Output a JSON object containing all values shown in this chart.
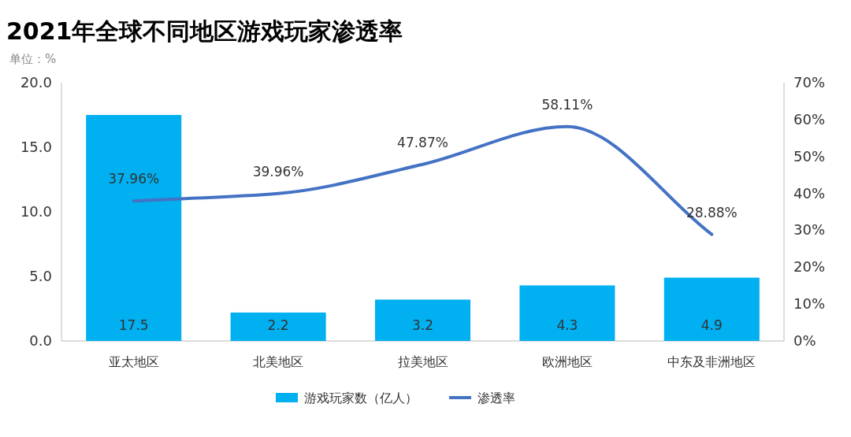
{
  "chart_data": {
    "type": "bar",
    "title": "2021年全球不同地区游戏玩家渗透率",
    "annotations": [
      "单位：%"
    ],
    "categories": [
      "亚太地区",
      "北美地区",
      "拉美地区",
      "欧洲地区",
      "中东及非洲地区"
    ],
    "series": [
      {
        "name": "游戏玩家数（亿人）",
        "color": "#00b0f0",
        "values": [
          17.5,
          2.2,
          3.2,
          4.3,
          4.9
        ],
        "value_labels": [
          "17.5",
          "2.2",
          "3.2",
          "4.3",
          "4.9"
        ]
      },
      {
        "name": "渗透率",
        "type": "line",
        "axis": "y2",
        "color": "#4472c4",
        "line_style": "solid",
        "values": [
          37.96,
          39.96,
          47.87,
          58.11,
          28.88
        ],
        "value_labels": [
          "37.96%",
          "39.96%",
          "47.87%",
          "58.11%",
          "28.88%"
        ]
      }
    ],
    "ylim": [
      0,
      20
    ],
    "yticks": [
      {
        "value": 0,
        "label": "0.0"
      },
      {
        "value": 5,
        "label": "5.0"
      },
      {
        "value": 10,
        "label": "10.0"
      },
      {
        "value": 15,
        "label": "15.0"
      },
      {
        "value": 20,
        "label": "20.0"
      }
    ],
    "y2lim": [
      0,
      70
    ],
    "y2ticks": [
      {
        "value": 0,
        "label": "0%"
      },
      {
        "value": 10,
        "label": "10%"
      },
      {
        "value": 20,
        "label": "20%"
      },
      {
        "value": 30,
        "label": "30%"
      },
      {
        "value": 40,
        "label": "40%"
      },
      {
        "value": 50,
        "label": "50%"
      },
      {
        "value": 60,
        "label": "60%"
      },
      {
        "value": 70,
        "label": "70%"
      }
    ],
    "legend": "bottom"
  }
}
